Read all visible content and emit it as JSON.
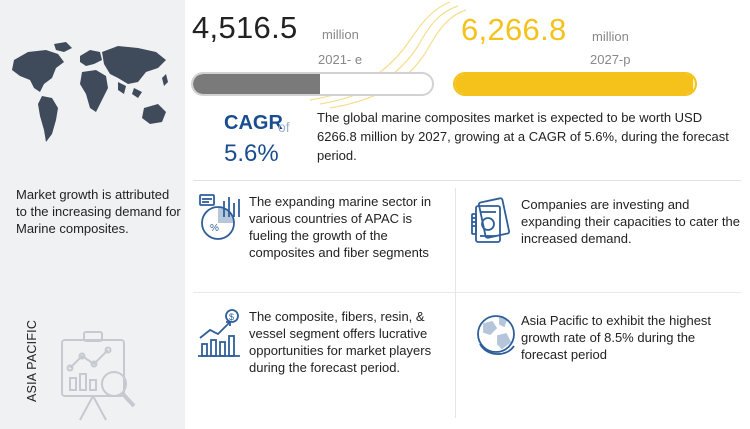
{
  "left": {
    "growth_text": "Market growth is attributed to the increasing demand for Marine composites.",
    "region_label": "ASIA PACIFIC",
    "icons": {
      "map": "world-map-icon",
      "board": "presentation-board-icon"
    }
  },
  "stats": {
    "value_2021": "4,516.5",
    "unit_2021": "million",
    "year_2021": "2021- e",
    "fill_2021": 0.53,
    "value_2027": "6,266.8",
    "unit_2027": "million",
    "year_2027": "2027-p",
    "fill_2027": 0.99
  },
  "cagr": {
    "label": "CAGR",
    "of": "of",
    "value": "5.6%",
    "summary": "The global marine composites market is expected to be worth USD 6266.8 million by 2027, growing at a CAGR of 5.6%, during the forecast period."
  },
  "points": [
    {
      "icon": "marine-chart-icon",
      "text": "The expanding marine sector in various countries of APAC is fueling the growth of the composites and fiber segments"
    },
    {
      "icon": "money-stack-icon",
      "text": "Companies are investing and expanding their capacities to cater the increased demand."
    },
    {
      "icon": "growth-bar-chart-icon",
      "text": "The composite, fibers, resin, & vessel segment offers lucrative opportunities for market players during the forecast period."
    },
    {
      "icon": "globe-icon",
      "text": "Asia Pacific to exhibit the highest growth rate of 8.5% during the forecast period"
    }
  ],
  "colors": {
    "accent": "#f5c21b",
    "accent_light": "#fff3c4",
    "bar_grey": "#7a7a7a",
    "cagr_blue": "#1a4d8f",
    "icon_blue": "#2f5f9a",
    "panel_bg": "#f0f1f3"
  }
}
